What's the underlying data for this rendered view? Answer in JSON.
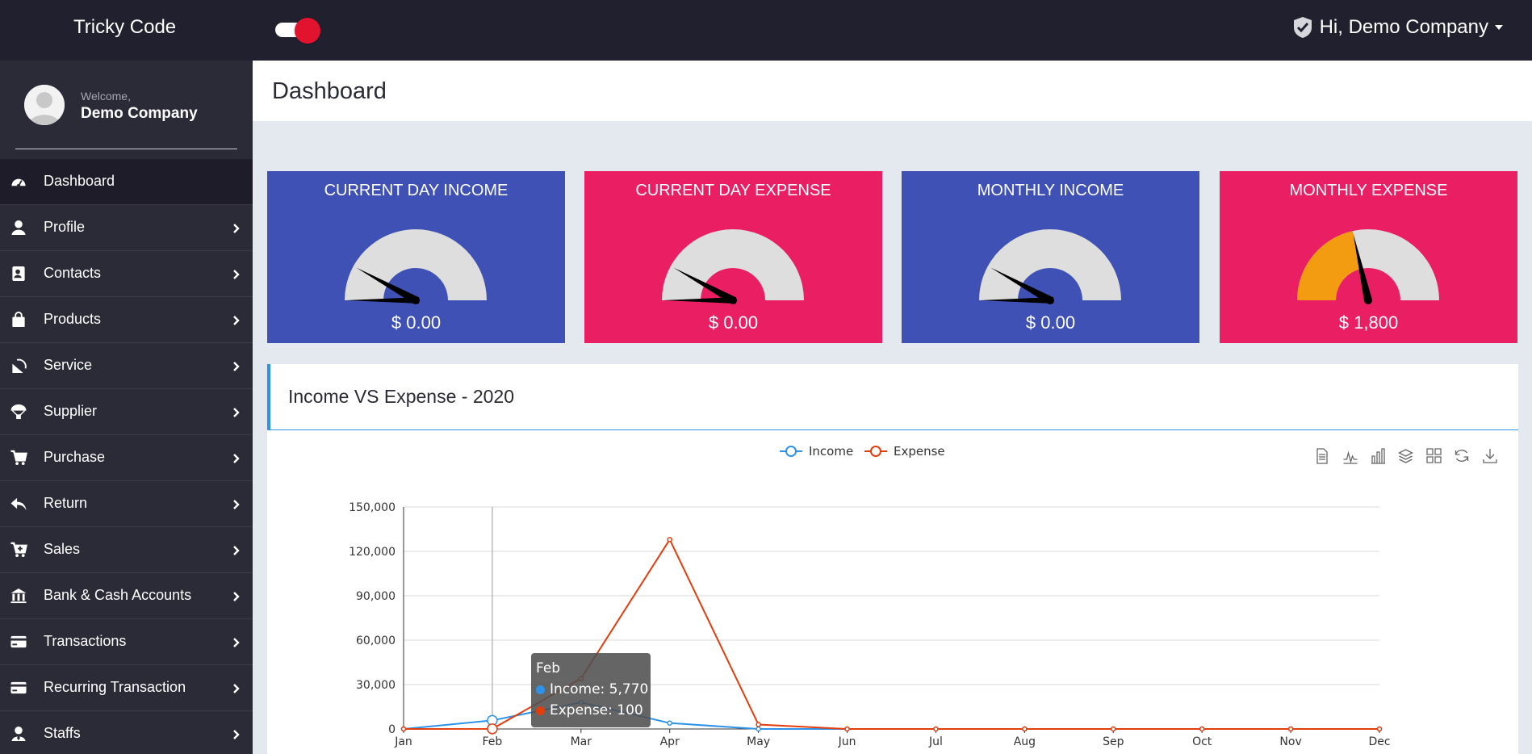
{
  "topbar": {
    "brand": "Tricky Code",
    "user_greeting": "Hi, Demo Company",
    "toggle_on": true
  },
  "sidebar": {
    "welcome": "Welcome,",
    "company": "Demo Company",
    "items": [
      {
        "label": "Dashboard",
        "icon": "dashboard-gauge-icon",
        "active": true
      },
      {
        "label": "Profile",
        "icon": "user-icon"
      },
      {
        "label": "Contacts",
        "icon": "contact-card-icon"
      },
      {
        "label": "Products",
        "icon": "shopping-bag-icon"
      },
      {
        "label": "Service",
        "icon": "satellite-dish-icon"
      },
      {
        "label": "Supplier",
        "icon": "parachute-box-icon"
      },
      {
        "label": "Purchase",
        "icon": "shopping-cart-icon"
      },
      {
        "label": "Return",
        "icon": "reply-icon"
      },
      {
        "label": "Sales",
        "icon": "cart-plus-icon"
      },
      {
        "label": "Bank & Cash Accounts",
        "icon": "bank-icon"
      },
      {
        "label": "Transactions",
        "icon": "credit-card-icon"
      },
      {
        "label": "Recurring Transaction",
        "icon": "credit-card-icon"
      },
      {
        "label": "Staffs",
        "icon": "user-tie-icon"
      }
    ]
  },
  "page": {
    "title": "Dashboard"
  },
  "cards": [
    {
      "title": "CURRENT DAY INCOME",
      "value": "$ 0.00",
      "color": "#3f51b5",
      "gauge_fraction": 0.0
    },
    {
      "title": "CURRENT DAY EXPENSE",
      "value": "$ 0.00",
      "color": "#ea1e63",
      "gauge_fraction": 0.0
    },
    {
      "title": "MONTHLY INCOME",
      "value": "$ 0.00",
      "color": "#3f51b5",
      "gauge_fraction": 0.0
    },
    {
      "title": "MONTHLY EXPENSE",
      "value": "$ 1,800",
      "color": "#ea1e63",
      "gauge_fraction": 0.43,
      "fill_color": "#f39c12"
    }
  ],
  "chart_panel": {
    "title": "Income VS Expense - 2020",
    "toolbar_icons": [
      "data-view-icon",
      "line-chart-icon",
      "bar-chart-icon",
      "stack-icon",
      "tiled-icon",
      "restore-icon",
      "save-image-icon"
    ]
  },
  "chart_data": {
    "type": "line",
    "categories": [
      "Jan",
      "Feb",
      "Mar",
      "Apr",
      "May",
      "Jun",
      "Jul",
      "Aug",
      "Sep",
      "Oct",
      "Nov",
      "Dec"
    ],
    "series": [
      {
        "name": "Income",
        "color": "#2e93e8",
        "values": [
          0,
          5770,
          18000,
          4000,
          0,
          0,
          0,
          0,
          0,
          0,
          0,
          0
        ]
      },
      {
        "name": "Expense",
        "color": "#e23d0d",
        "values": [
          0,
          100,
          34000,
          128000,
          3000,
          0,
          0,
          0,
          0,
          0,
          0,
          0
        ]
      }
    ],
    "y_ticks": [
      "0",
      "30,000",
      "60,000",
      "90,000",
      "120,000",
      "150,000"
    ],
    "ylim": [
      0,
      150000
    ],
    "legend_position": "top-center",
    "grid": true,
    "tooltip": {
      "title": "Feb",
      "rows": [
        "Income: 5,770",
        "Expense: 100"
      ]
    }
  }
}
